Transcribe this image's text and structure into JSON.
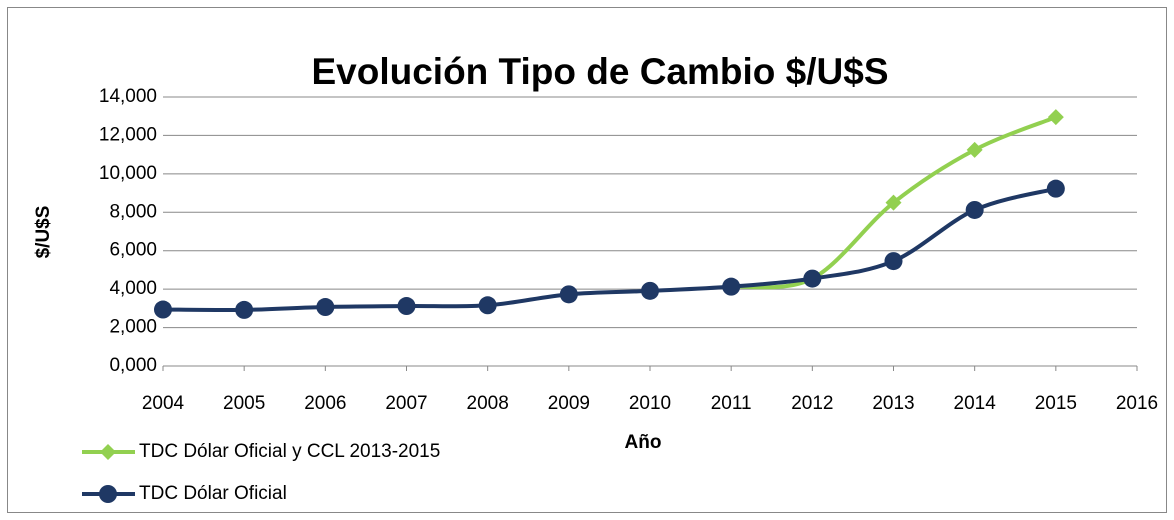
{
  "chart_data": {
    "type": "line",
    "title": "Evolución Tipo de Cambio $/U$S",
    "x_label": "Año",
    "y_label": "$/U$S",
    "x": [
      2004,
      2005,
      2006,
      2007,
      2008,
      2009,
      2010,
      2011,
      2012,
      2013,
      2014,
      2015
    ],
    "series": [
      {
        "name": "TDC Dólar Oficial y CCL 2013-2015",
        "color": "#92d050",
        "marker": "diamond",
        "values": [
          null,
          null,
          null,
          null,
          null,
          null,
          null,
          4.13,
          4.55,
          8.5,
          11.25,
          12.95
        ]
      },
      {
        "name": "TDC Dólar Oficial",
        "color": "#1f3864",
        "marker": "circle",
        "values": [
          2.94,
          2.92,
          3.07,
          3.12,
          3.16,
          3.73,
          3.91,
          4.13,
          4.55,
          5.46,
          8.12,
          9.23
        ]
      }
    ],
    "xlim": [
      2004,
      2016
    ],
    "xticks": [
      2004,
      2005,
      2006,
      2007,
      2008,
      2009,
      2010,
      2011,
      2012,
      2013,
      2014,
      2015,
      2016
    ],
    "ylim": [
      0,
      14
    ],
    "yticks": [
      {
        "value": 0,
        "label": "0,000"
      },
      {
        "value": 2,
        "label": "2,000"
      },
      {
        "value": 4,
        "label": "4,000"
      },
      {
        "value": 6,
        "label": "6,000"
      },
      {
        "value": 8,
        "label": "8,000"
      },
      {
        "value": 10,
        "label": "10,000"
      },
      {
        "value": 12,
        "label": "12,000"
      },
      {
        "value": 14,
        "label": "14,000"
      }
    ],
    "grid": true,
    "legend": "bottom-left"
  }
}
